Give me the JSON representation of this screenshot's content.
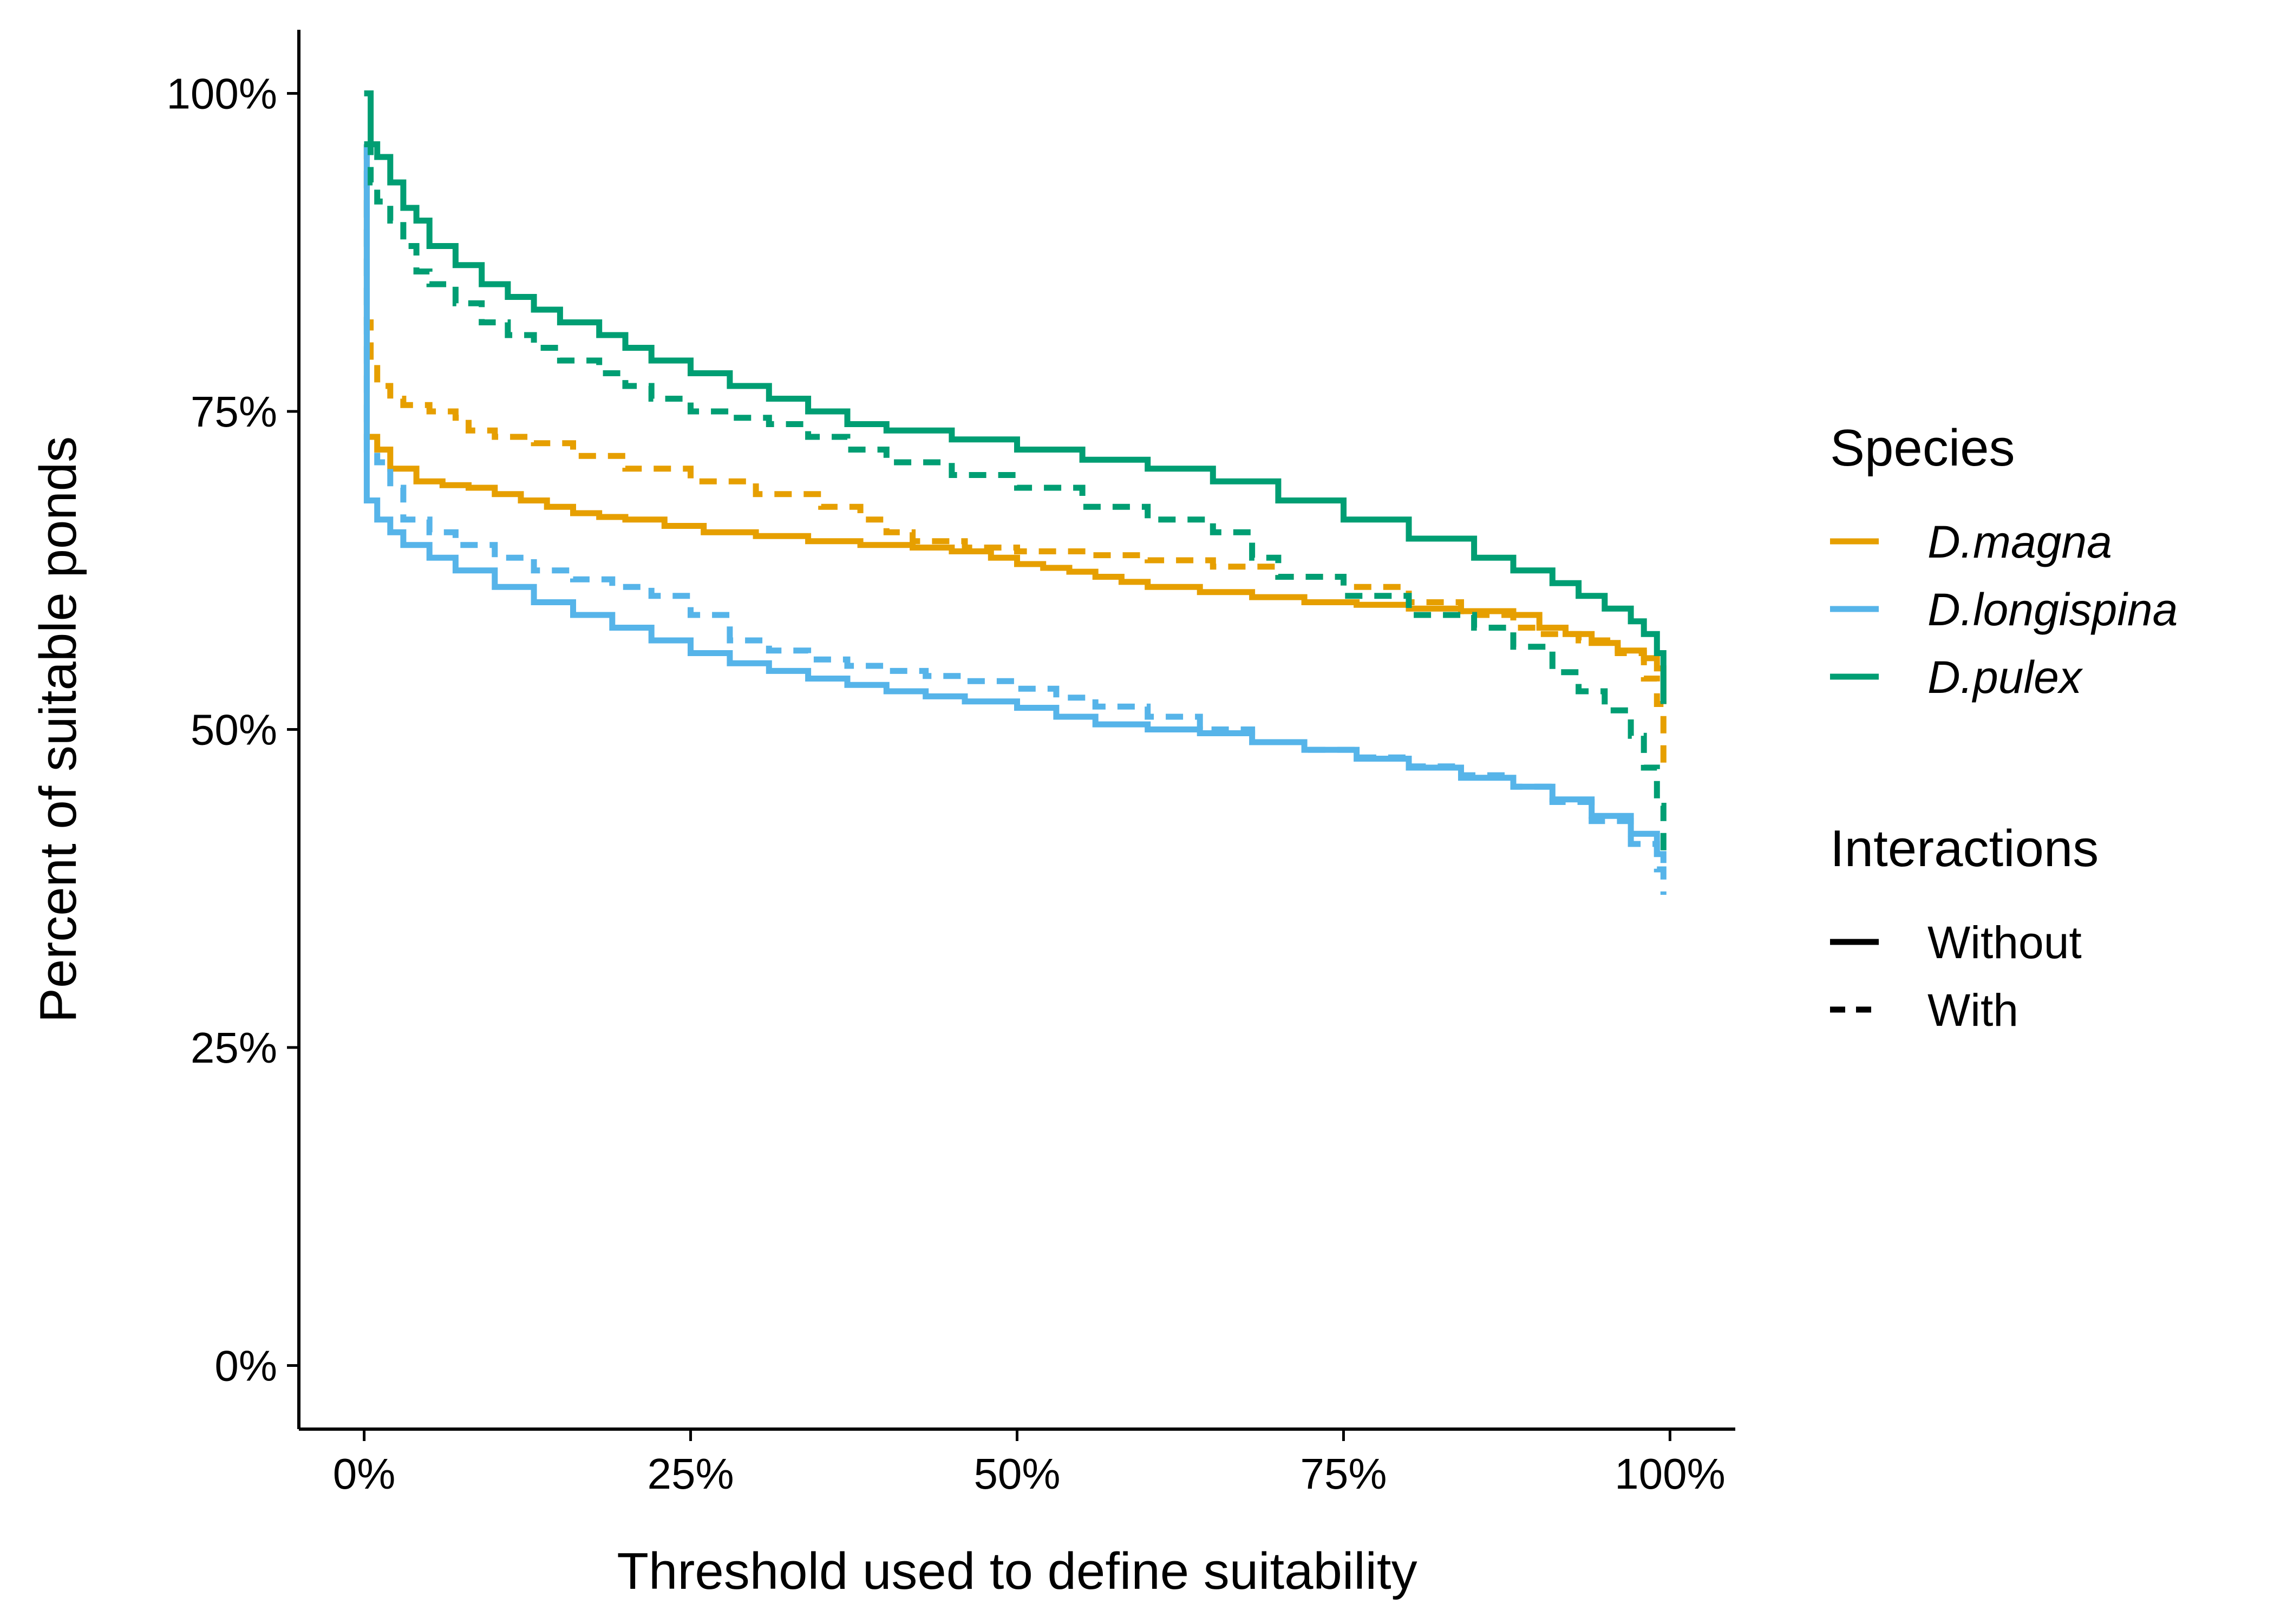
{
  "chart_data": {
    "type": "line",
    "xlabel": "Threshold used to define suitability",
    "ylabel": "Percent of suitable ponds",
    "xlim": [
      -0.05,
      1.05
    ],
    "ylim": [
      -0.05,
      1.05
    ],
    "x_ticks": [
      0,
      0.25,
      0.5,
      0.75,
      1.0
    ],
    "x_tick_labels": [
      "0%",
      "25%",
      "50%",
      "75%",
      "100%"
    ],
    "y_ticks": [
      0,
      0.25,
      0.5,
      0.75,
      1.0
    ],
    "y_tick_labels": [
      "0%",
      "25%",
      "50%",
      "75%",
      "100%"
    ],
    "grid": false,
    "legend_position": "right",
    "legends": [
      {
        "title": "Species",
        "items": [
          {
            "label": "D.magna",
            "color": "#E69F00",
            "italic": true
          },
          {
            "label": "D.longispina",
            "color": "#56B4E9",
            "italic": true
          },
          {
            "label": "D.pulex",
            "color": "#009E73",
            "italic": true
          }
        ]
      },
      {
        "title": "Interactions",
        "items": [
          {
            "label": "Without",
            "linetype": "solid"
          },
          {
            "label": "With",
            "linetype": "dashed"
          }
        ]
      }
    ],
    "series": [
      {
        "species": "D.magna",
        "interactions": "Without",
        "color": "#E69F00",
        "linetype": "solid",
        "x": [
          0,
          0.002,
          0.01,
          0.02,
          0.04,
          0.06,
          0.08,
          0.1,
          0.12,
          0.14,
          0.16,
          0.18,
          0.2,
          0.23,
          0.26,
          0.3,
          0.34,
          0.38,
          0.42,
          0.45,
          0.48,
          0.5,
          0.52,
          0.54,
          0.56,
          0.58,
          0.6,
          0.64,
          0.68,
          0.72,
          0.76,
          0.8,
          0.84,
          0.88,
          0.9,
          0.92,
          0.94,
          0.96,
          0.98,
          0.99,
          0.995
        ],
        "y": [
          0.96,
          0.73,
          0.72,
          0.705,
          0.695,
          0.692,
          0.69,
          0.685,
          0.68,
          0.675,
          0.67,
          0.667,
          0.665,
          0.66,
          0.655,
          0.652,
          0.648,
          0.645,
          0.643,
          0.64,
          0.635,
          0.63,
          0.627,
          0.624,
          0.62,
          0.616,
          0.612,
          0.608,
          0.604,
          0.6,
          0.598,
          0.595,
          0.593,
          0.59,
          0.58,
          0.575,
          0.568,
          0.562,
          0.556,
          0.548,
          0.52
        ]
      },
      {
        "species": "D.magna",
        "interactions": "With",
        "color": "#E69F00",
        "linetype": "dashed",
        "x": [
          0,
          0.002,
          0.005,
          0.01,
          0.02,
          0.03,
          0.05,
          0.07,
          0.08,
          0.1,
          0.13,
          0.16,
          0.2,
          0.25,
          0.3,
          0.35,
          0.38,
          0.4,
          0.42,
          0.46,
          0.5,
          0.55,
          0.6,
          0.65,
          0.7,
          0.75,
          0.8,
          0.84,
          0.88,
          0.9,
          0.93,
          0.96,
          0.98,
          0.99,
          0.995
        ],
        "y": [
          0.96,
          0.82,
          0.79,
          0.77,
          0.76,
          0.755,
          0.75,
          0.745,
          0.735,
          0.73,
          0.725,
          0.715,
          0.705,
          0.695,
          0.685,
          0.675,
          0.665,
          0.655,
          0.648,
          0.643,
          0.64,
          0.637,
          0.633,
          0.628,
          0.62,
          0.612,
          0.6,
          0.59,
          0.58,
          0.575,
          0.57,
          0.56,
          0.54,
          0.52,
          0.47
        ]
      },
      {
        "species": "D.longispina",
        "interactions": "Without",
        "color": "#56B4E9",
        "linetype": "solid",
        "x": [
          0,
          0.002,
          0.01,
          0.02,
          0.03,
          0.05,
          0.07,
          0.1,
          0.13,
          0.16,
          0.19,
          0.22,
          0.25,
          0.28,
          0.31,
          0.34,
          0.37,
          0.4,
          0.43,
          0.46,
          0.5,
          0.53,
          0.56,
          0.6,
          0.64,
          0.68,
          0.72,
          0.76,
          0.8,
          0.84,
          0.88,
          0.91,
          0.94,
          0.97,
          0.99,
          0.995
        ],
        "y": [
          0.96,
          0.68,
          0.665,
          0.655,
          0.645,
          0.635,
          0.625,
          0.612,
          0.6,
          0.59,
          0.58,
          0.57,
          0.56,
          0.552,
          0.546,
          0.54,
          0.535,
          0.53,
          0.526,
          0.522,
          0.517,
          0.51,
          0.504,
          0.5,
          0.497,
          0.49,
          0.484,
          0.477,
          0.47,
          0.462,
          0.455,
          0.445,
          0.432,
          0.418,
          0.402,
          0.395
        ]
      },
      {
        "species": "D.longispina",
        "interactions": "With",
        "color": "#56B4E9",
        "linetype": "dashed",
        "x": [
          0,
          0.002,
          0.01,
          0.02,
          0.03,
          0.05,
          0.07,
          0.1,
          0.13,
          0.16,
          0.19,
          0.22,
          0.25,
          0.28,
          0.31,
          0.34,
          0.37,
          0.4,
          0.43,
          0.46,
          0.5,
          0.53,
          0.56,
          0.6,
          0.64,
          0.68,
          0.72,
          0.76,
          0.8,
          0.84,
          0.88,
          0.91,
          0.94,
          0.97,
          0.99,
          0.995
        ],
        "y": [
          0.96,
          0.72,
          0.71,
          0.69,
          0.665,
          0.655,
          0.645,
          0.635,
          0.625,
          0.618,
          0.612,
          0.605,
          0.59,
          0.57,
          0.562,
          0.555,
          0.55,
          0.546,
          0.542,
          0.538,
          0.532,
          0.525,
          0.518,
          0.51,
          0.5,
          0.49,
          0.484,
          0.478,
          0.471,
          0.464,
          0.455,
          0.443,
          0.428,
          0.41,
          0.39,
          0.37
        ]
      },
      {
        "species": "D.pulex",
        "interactions": "Without",
        "color": "#009E73",
        "linetype": "solid",
        "x": [
          0,
          0.005,
          0.01,
          0.02,
          0.03,
          0.04,
          0.05,
          0.07,
          0.09,
          0.11,
          0.13,
          0.15,
          0.18,
          0.2,
          0.22,
          0.25,
          0.28,
          0.31,
          0.34,
          0.37,
          0.4,
          0.45,
          0.5,
          0.55,
          0.6,
          0.65,
          0.7,
          0.75,
          0.8,
          0.85,
          0.88,
          0.91,
          0.93,
          0.95,
          0.97,
          0.98,
          0.99,
          0.995
        ],
        "y": [
          1.0,
          0.96,
          0.95,
          0.93,
          0.91,
          0.9,
          0.88,
          0.865,
          0.85,
          0.84,
          0.83,
          0.82,
          0.81,
          0.8,
          0.79,
          0.78,
          0.77,
          0.76,
          0.75,
          0.74,
          0.735,
          0.728,
          0.72,
          0.712,
          0.705,
          0.695,
          0.68,
          0.665,
          0.65,
          0.635,
          0.625,
          0.615,
          0.605,
          0.595,
          0.585,
          0.575,
          0.56,
          0.52
        ]
      },
      {
        "species": "D.pulex",
        "interactions": "With",
        "color": "#009E73",
        "linetype": "dashed",
        "x": [
          0,
          0.005,
          0.01,
          0.02,
          0.03,
          0.04,
          0.05,
          0.07,
          0.09,
          0.11,
          0.13,
          0.15,
          0.18,
          0.2,
          0.22,
          0.25,
          0.28,
          0.31,
          0.34,
          0.37,
          0.4,
          0.45,
          0.5,
          0.55,
          0.6,
          0.65,
          0.68,
          0.7,
          0.75,
          0.8,
          0.85,
          0.88,
          0.91,
          0.93,
          0.95,
          0.97,
          0.98,
          0.99,
          0.995
        ],
        "y": [
          0.96,
          0.93,
          0.915,
          0.9,
          0.88,
          0.86,
          0.85,
          0.835,
          0.82,
          0.81,
          0.8,
          0.79,
          0.78,
          0.77,
          0.76,
          0.75,
          0.745,
          0.74,
          0.73,
          0.72,
          0.71,
          0.7,
          0.69,
          0.675,
          0.665,
          0.655,
          0.635,
          0.62,
          0.605,
          0.59,
          0.58,
          0.565,
          0.545,
          0.53,
          0.515,
          0.495,
          0.47,
          0.44,
          0.4
        ]
      }
    ]
  }
}
